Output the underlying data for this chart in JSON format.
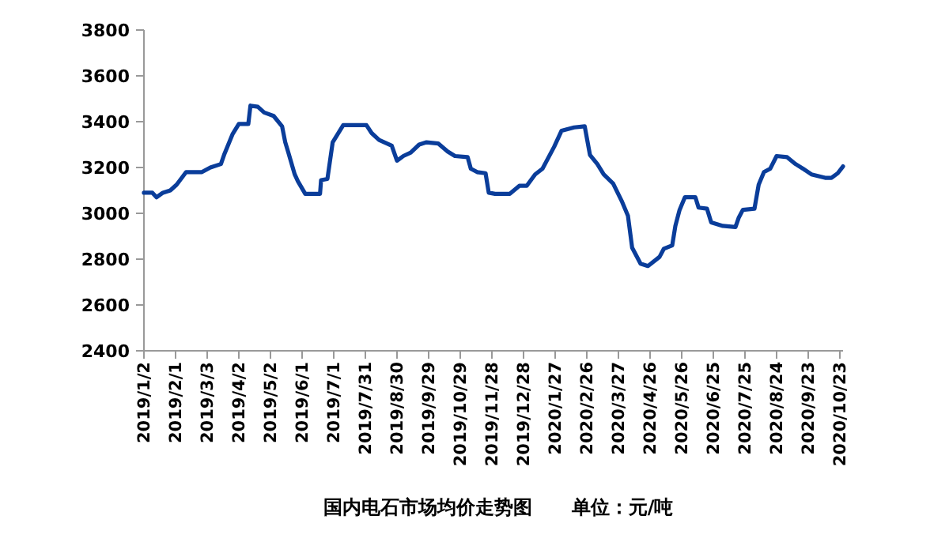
{
  "chart_data": {
    "type": "line",
    "title": "国内电石市场均价走势图      单位：元/吨",
    "x": [
      "2019-01-02",
      "2019-01-10",
      "2019-01-14",
      "2019-01-20",
      "2019-01-27",
      "2019-02-02",
      "2019-02-11",
      "2019-02-26",
      "2019-03-06",
      "2019-03-16",
      "2019-03-19",
      "2019-03-27",
      "2019-04-02",
      "2019-04-11",
      "2019-04-13",
      "2019-04-20",
      "2019-04-26",
      "2019-05-05",
      "2019-05-13",
      "2019-05-16",
      "2019-05-19",
      "2019-05-25",
      "2019-05-28",
      "2019-06-04",
      "2019-06-18",
      "2019-06-19",
      "2019-06-25",
      "2019-06-30",
      "2019-07-10",
      "2019-08-01",
      "2019-08-06",
      "2019-08-13",
      "2019-08-25",
      "2019-08-30",
      "2019-09-05",
      "2019-09-12",
      "2019-09-20",
      "2019-09-27",
      "2019-10-08",
      "2019-10-17",
      "2019-10-24",
      "2019-11-05",
      "2019-11-08",
      "2019-11-14",
      "2019-11-22",
      "2019-11-25",
      "2019-12-01",
      "2019-12-15",
      "2019-12-24",
      "2019-12-31",
      "2020-01-08",
      "2020-01-15",
      "2020-01-26",
      "2020-02-02",
      "2020-02-14",
      "2020-02-24",
      "2020-02-29",
      "2020-03-07",
      "2020-03-13",
      "2020-03-22",
      "2020-03-30",
      "2020-04-05",
      "2020-04-09",
      "2020-04-17",
      "2020-04-24",
      "2020-05-05",
      "2020-05-09",
      "2020-05-17",
      "2020-05-20",
      "2020-05-24",
      "2020-05-29",
      "2020-06-08",
      "2020-06-11",
      "2020-06-19",
      "2020-06-23",
      "2020-07-04",
      "2020-07-16",
      "2020-07-19",
      "2020-07-23",
      "2020-08-03",
      "2020-08-07",
      "2020-08-12",
      "2020-08-18",
      "2020-08-24",
      "2020-09-03",
      "2020-09-11",
      "2020-09-18",
      "2020-09-26",
      "2020-10-09",
      "2020-10-15",
      "2020-10-21",
      "2020-10-26"
    ],
    "series": [
      {
        "color": "#0a3d9a",
        "values": [
          3090,
          3090,
          3070,
          3090,
          3100,
          3125,
          3180,
          3180,
          3200,
          3215,
          3255,
          3345,
          3390,
          3390,
          3470,
          3465,
          3440,
          3425,
          3380,
          3310,
          3265,
          3170,
          3140,
          3085,
          3085,
          3145,
          3150,
          3310,
          3385,
          3385,
          3350,
          3320,
          3295,
          3230,
          3250,
          3265,
          3300,
          3310,
          3305,
          3270,
          3250,
          3245,
          3195,
          3180,
          3175,
          3090,
          3085,
          3085,
          3120,
          3120,
          3170,
          3195,
          3290,
          3360,
          3375,
          3380,
          3255,
          3215,
          3170,
          3130,
          3055,
          2990,
          2850,
          2780,
          2770,
          2810,
          2845,
          2860,
          2945,
          3015,
          3070,
          3070,
          3025,
          3020,
          2960,
          2945,
          2940,
          2980,
          3015,
          3020,
          3125,
          3180,
          3195,
          3250,
          3245,
          3215,
          3195,
          3170,
          3155,
          3155,
          3175,
          3205
        ]
      }
    ],
    "xlim": [
      "2019-01-02",
      "2020-10-26"
    ],
    "xticks": [
      {
        "value": "2019-01-02",
        "label": "2019/1/2"
      },
      {
        "value": "2019-02-01",
        "label": "2019/2/1"
      },
      {
        "value": "2019-03-03",
        "label": "2019/3/3"
      },
      {
        "value": "2019-04-02",
        "label": "2019/4/2"
      },
      {
        "value": "2019-05-02",
        "label": "2019/5/2"
      },
      {
        "value": "2019-06-01",
        "label": "2019/6/1"
      },
      {
        "value": "2019-07-01",
        "label": "2019/7/1"
      },
      {
        "value": "2019-07-31",
        "label": "2019/7/31"
      },
      {
        "value": "2019-08-30",
        "label": "2019/8/30"
      },
      {
        "value": "2019-09-29",
        "label": "2019/9/29"
      },
      {
        "value": "2019-10-29",
        "label": "2019/10/29"
      },
      {
        "value": "2019-11-28",
        "label": "2019/11/28"
      },
      {
        "value": "2019-12-28",
        "label": "2019/12/28"
      },
      {
        "value": "2020-01-27",
        "label": "2020/1/27"
      },
      {
        "value": "2020-02-26",
        "label": "2020/2/26"
      },
      {
        "value": "2020-03-27",
        "label": "2020/3/27"
      },
      {
        "value": "2020-04-26",
        "label": "2020/4/26"
      },
      {
        "value": "2020-05-26",
        "label": "2020/5/26"
      },
      {
        "value": "2020-06-25",
        "label": "2020/6/25"
      },
      {
        "value": "2020-07-25",
        "label": "2020/7/25"
      },
      {
        "value": "2020-08-24",
        "label": "2020/8/24"
      },
      {
        "value": "2020-09-23",
        "label": "2020/9/23"
      },
      {
        "value": "2020-10-23",
        "label": "2020/10/23"
      }
    ],
    "ylim": [
      2400,
      3800
    ],
    "yticks": [
      2400,
      2600,
      2800,
      3000,
      3200,
      3400,
      3600,
      3800
    ],
    "grid": false,
    "marker": "none",
    "line_style": "solid"
  }
}
